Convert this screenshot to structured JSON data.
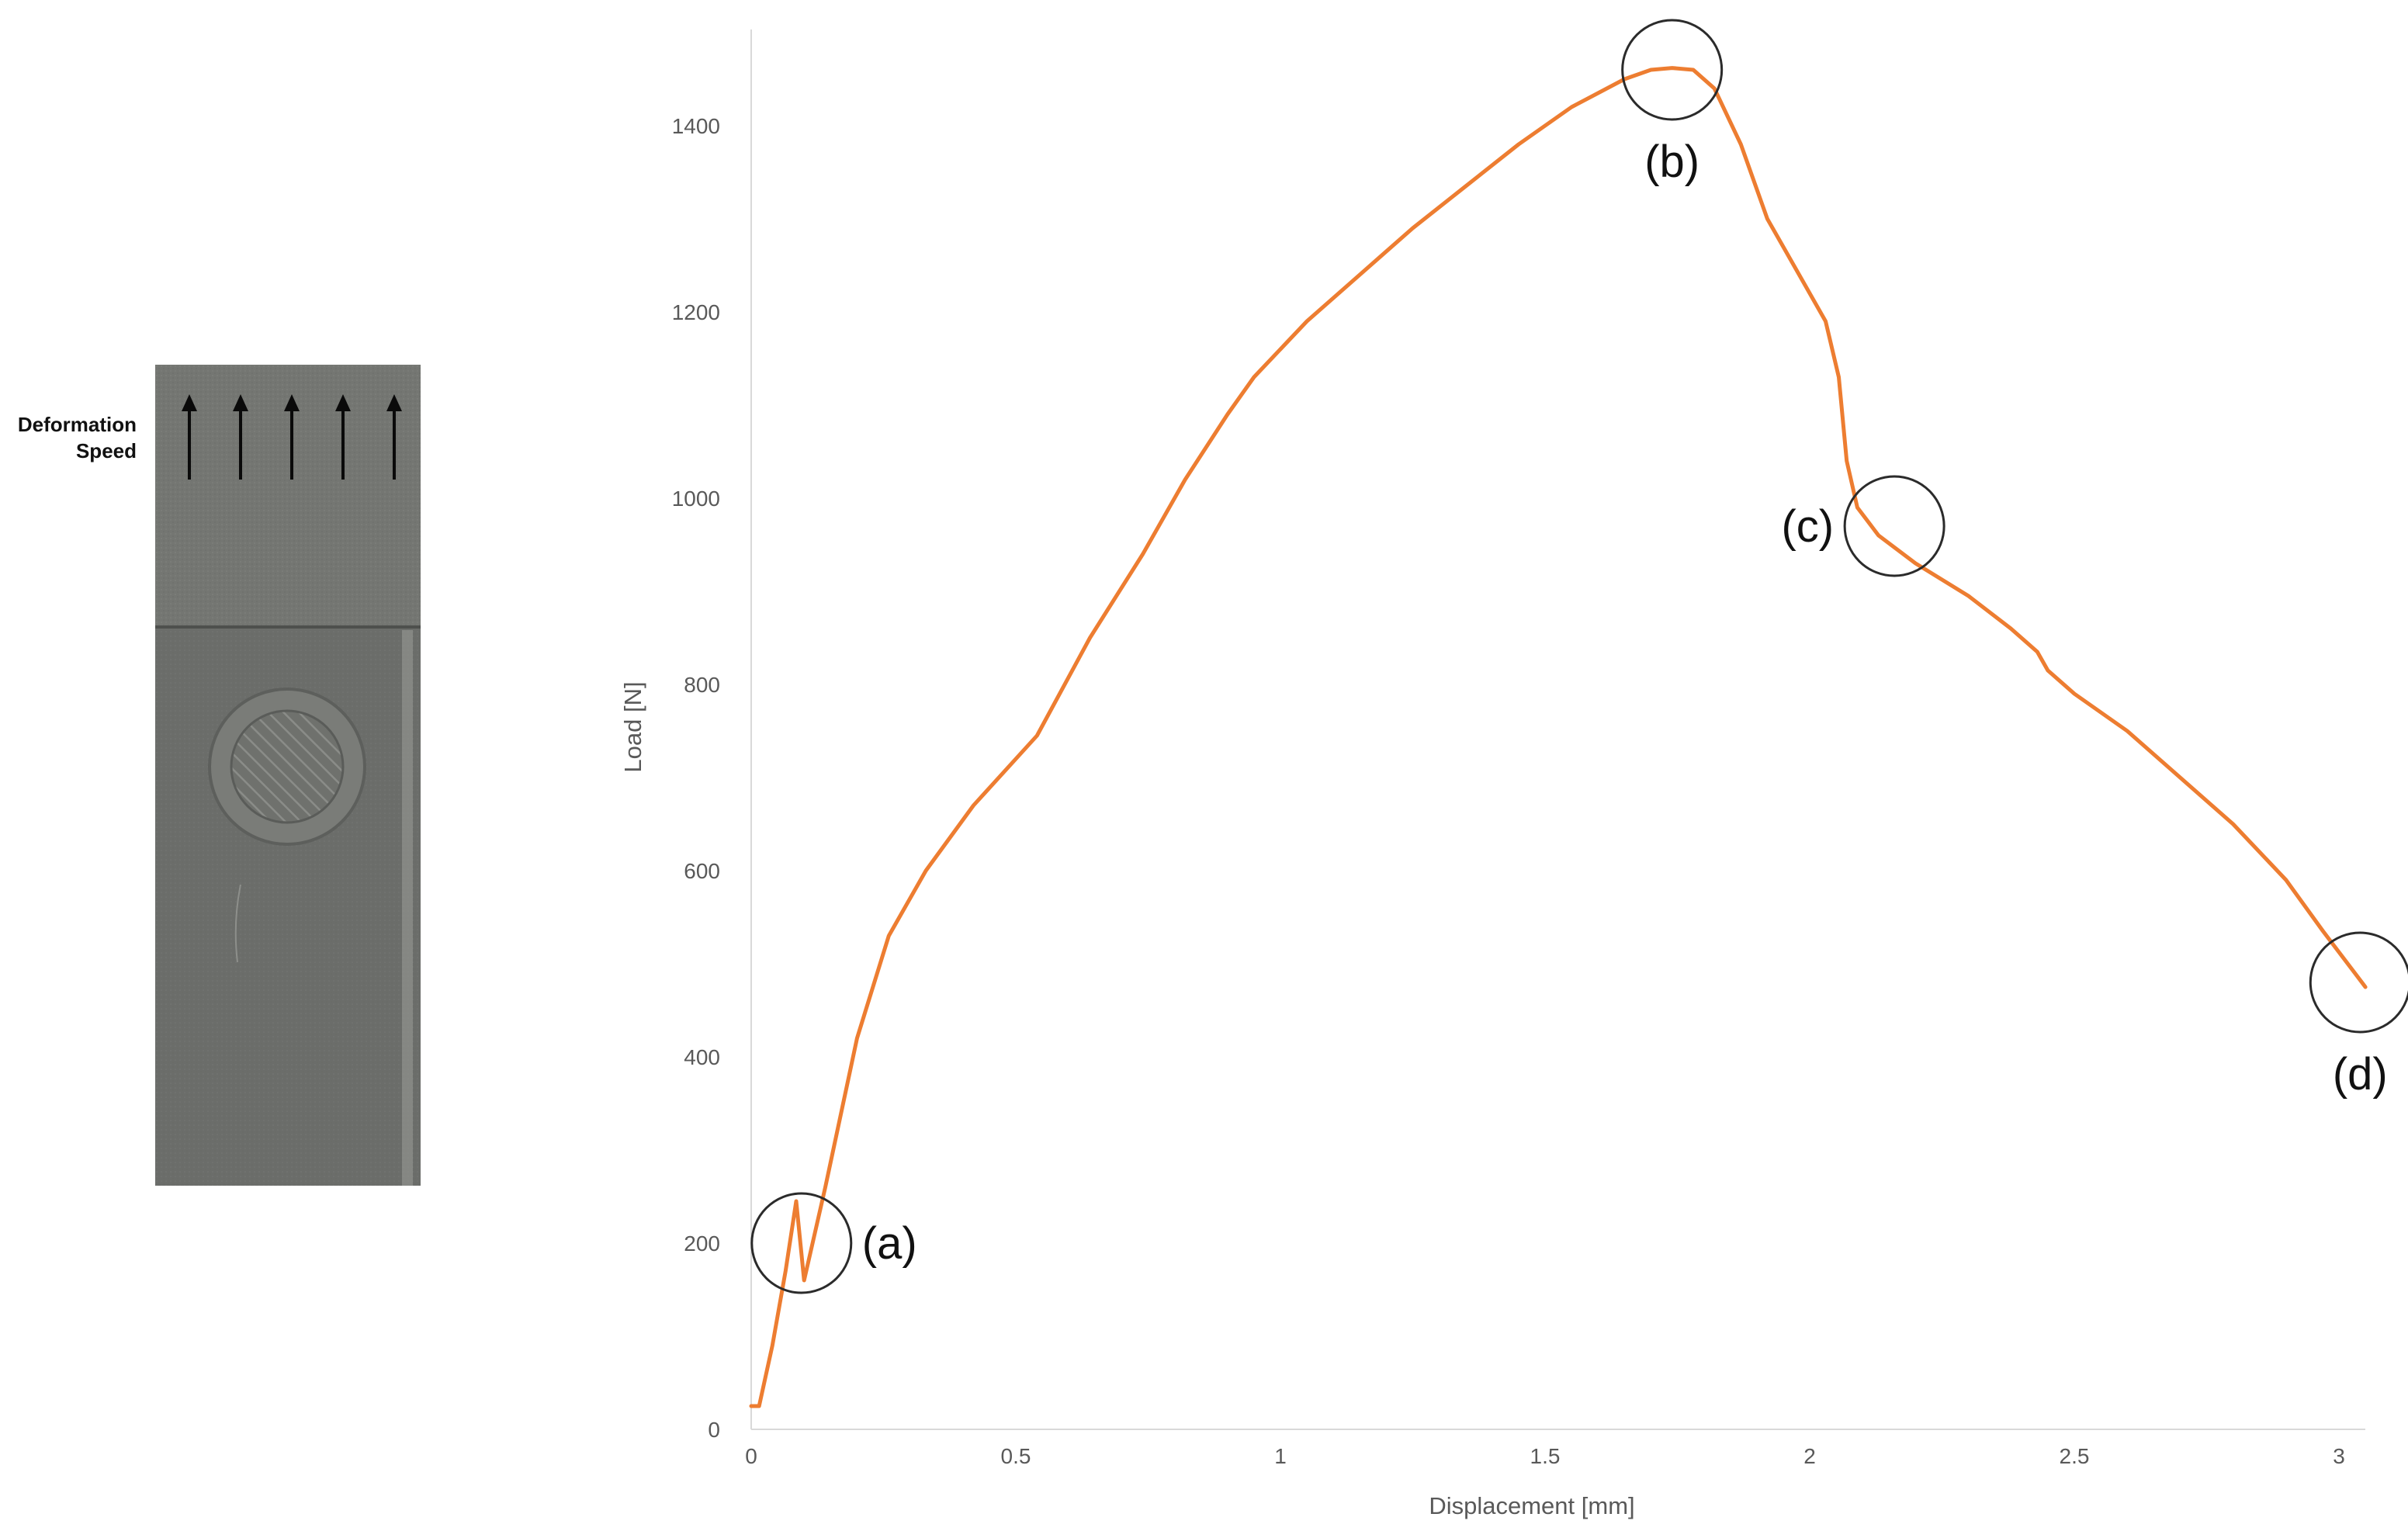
{
  "specimen": {
    "label_line1": "Deformation",
    "label_line2": "Speed",
    "arrow_count": 5,
    "colors": {
      "clamp_section": "#747672",
      "sample_section": "#6b6d6a",
      "weld_spot": "#7a7c78",
      "arrow": "#0a0a0a"
    }
  },
  "chart_data": {
    "type": "line",
    "xlabel": "Displacement [mm]",
    "ylabel": "Load [N]",
    "xlim": [
      0,
      3.1
    ],
    "ylim": [
      0,
      1500
    ],
    "x_ticks": [
      0,
      0.5,
      1,
      1.5,
      2,
      2.5,
      3
    ],
    "x_tick_labels": [
      "0",
      "0.5",
      "1",
      "1.5",
      "2",
      "2.5",
      "3"
    ],
    "y_ticks": [
      0,
      200,
      400,
      600,
      800,
      1000,
      1200,
      1400
    ],
    "y_tick_labels": [
      "0",
      "200",
      "400",
      "600",
      "800",
      "1000",
      "1200",
      "1400"
    ],
    "grid": false,
    "legend": "none",
    "series": [
      {
        "color": "#ED7D31",
        "points": [
          [
            0.0,
            25
          ],
          [
            0.015,
            25
          ],
          [
            0.04,
            90
          ],
          [
            0.065,
            170
          ],
          [
            0.085,
            245
          ],
          [
            0.1,
            160
          ],
          [
            0.14,
            260
          ],
          [
            0.2,
            420
          ],
          [
            0.26,
            530
          ],
          [
            0.33,
            600
          ],
          [
            0.42,
            670
          ],
          [
            0.54,
            745
          ],
          [
            0.64,
            850
          ],
          [
            0.74,
            940
          ],
          [
            0.82,
            1020
          ],
          [
            0.9,
            1090
          ],
          [
            0.95,
            1130
          ],
          [
            1.05,
            1190
          ],
          [
            1.15,
            1240
          ],
          [
            1.25,
            1290
          ],
          [
            1.35,
            1335
          ],
          [
            1.45,
            1380
          ],
          [
            1.55,
            1420
          ],
          [
            1.65,
            1450
          ],
          [
            1.7,
            1460
          ],
          [
            1.74,
            1462
          ],
          [
            1.78,
            1460
          ],
          [
            1.82,
            1440
          ],
          [
            1.87,
            1380
          ],
          [
            1.92,
            1300
          ],
          [
            1.98,
            1240
          ],
          [
            2.03,
            1190
          ],
          [
            2.055,
            1130
          ],
          [
            2.07,
            1040
          ],
          [
            2.09,
            990
          ],
          [
            2.13,
            960
          ],
          [
            2.2,
            930
          ],
          [
            2.3,
            895
          ],
          [
            2.38,
            860
          ],
          [
            2.43,
            835
          ],
          [
            2.45,
            815
          ],
          [
            2.5,
            790
          ],
          [
            2.6,
            750
          ],
          [
            2.7,
            700
          ],
          [
            2.8,
            650
          ],
          [
            2.9,
            590
          ],
          [
            2.97,
            535
          ],
          [
            3.03,
            490
          ],
          [
            3.05,
            475
          ]
        ]
      }
    ],
    "callouts": [
      {
        "label": "(a)",
        "x": 0.095,
        "y": 200,
        "label_side": "right"
      },
      {
        "label": "(b)",
        "x": 1.74,
        "y": 1460,
        "label_side": "below"
      },
      {
        "label": "(c)",
        "x": 2.16,
        "y": 970,
        "label_side": "left"
      },
      {
        "label": "(d)",
        "x": 3.04,
        "y": 480,
        "label_side": "below"
      }
    ]
  }
}
